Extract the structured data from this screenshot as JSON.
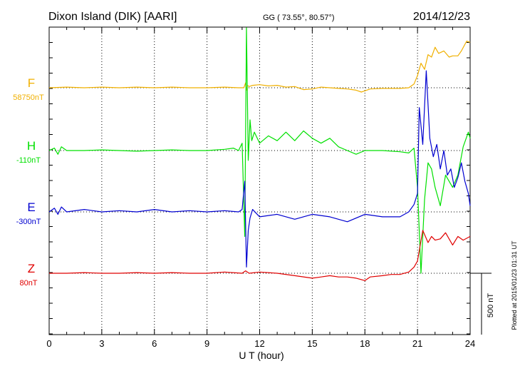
{
  "header": {
    "station": "Dixon Island (DIK)  [AARI]",
    "coords": "GG ( 73.55°,  80.57°)",
    "date": "2014/12/23"
  },
  "plotted_note": "Plotted at 2015/01/23 01:31  UT",
  "scale_bar_label": "500 nT",
  "colors": {
    "F": "#f0b000",
    "H": "#00e000",
    "E": "#0000d0",
    "Z": "#e00000",
    "axis": "#000000",
    "grid": "#000000"
  },
  "chart_data": {
    "type": "line",
    "xlabel": "U T (hour)",
    "xlim": [
      0,
      24
    ],
    "xticks": [
      0,
      3,
      6,
      9,
      12,
      15,
      18,
      21,
      24
    ],
    "xtick_labels": [
      "0",
      "3",
      "6",
      "9",
      "12",
      "15",
      "18",
      "21",
      "24"
    ],
    "grid": true,
    "y_unit": "nT",
    "y_range_per_panel_nT": 1000,
    "scale_bar_nT": 500,
    "series": [
      {
        "name": "F",
        "baseline_label": "58750nT",
        "color": "#f0b000",
        "x": [
          0,
          1,
          2,
          3,
          4,
          5,
          6,
          7,
          8,
          9,
          10,
          10.8,
          11.1,
          11.2,
          11.25,
          11.3,
          11.4,
          11.6,
          12,
          12.5,
          13,
          13.5,
          14,
          14.5,
          15,
          15.5,
          16,
          16.5,
          17,
          17.5,
          17.8,
          18,
          18.3,
          19,
          20,
          20.5,
          20.8,
          21,
          21.2,
          21.4,
          21.6,
          21.8,
          22,
          22.2,
          22.5,
          22.8,
          23,
          23.3,
          23.5,
          23.8,
          24
        ],
        "y": [
          0,
          5,
          0,
          5,
          0,
          5,
          0,
          5,
          0,
          0,
          5,
          0,
          0,
          40,
          -20,
          20,
          10,
          20,
          25,
          15,
          20,
          5,
          10,
          -15,
          -10,
          5,
          0,
          -5,
          -10,
          -20,
          -35,
          -25,
          -10,
          -5,
          -5,
          0,
          30,
          100,
          200,
          150,
          270,
          250,
          330,
          280,
          300,
          250,
          260,
          260,
          300,
          380,
          370
        ]
      },
      {
        "name": "H",
        "baseline_label": "-110nT",
        "color": "#00e000",
        "x": [
          0,
          0.3,
          0.5,
          0.7,
          1,
          2,
          3,
          4,
          5,
          6,
          7,
          8,
          9,
          10,
          10.5,
          10.8,
          11,
          11.15,
          11.25,
          11.35,
          11.45,
          11.55,
          11.7,
          12,
          12.5,
          13,
          13.5,
          14,
          14.5,
          15,
          15.5,
          16,
          16.5,
          17,
          17.5,
          18,
          19,
          20,
          20.5,
          20.8,
          21,
          21.2,
          21.4,
          21.6,
          21.8,
          22,
          22.3,
          22.6,
          23,
          23.3,
          23.6,
          23.9,
          24
        ],
        "y": [
          0,
          20,
          -30,
          30,
          0,
          0,
          5,
          0,
          -5,
          0,
          5,
          0,
          0,
          10,
          20,
          0,
          60,
          -700,
          1000,
          -80,
          250,
          80,
          150,
          60,
          120,
          80,
          150,
          80,
          160,
          100,
          60,
          100,
          30,
          0,
          -30,
          0,
          0,
          -10,
          -20,
          20,
          -300,
          -1000,
          -400,
          -100,
          -150,
          -300,
          -450,
          -200,
          -300,
          -200,
          30,
          150,
          100
        ]
      },
      {
        "name": "E",
        "baseline_label": "-300nT",
        "color": "#0000d0",
        "x": [
          0,
          0.3,
          0.5,
          0.7,
          1,
          2,
          3,
          4,
          5,
          6,
          7,
          8,
          9,
          10,
          10.8,
          11,
          11.15,
          11.25,
          11.35,
          11.45,
          11.6,
          12,
          13,
          14,
          15,
          16,
          17,
          18,
          19,
          20,
          20.5,
          20.8,
          21,
          21.1,
          21.3,
          21.5,
          21.7,
          21.9,
          22.1,
          22.3,
          22.5,
          22.7,
          22.9,
          23.1,
          23.3,
          23.5,
          23.7,
          23.9,
          24
        ],
        "y": [
          0,
          30,
          -20,
          40,
          0,
          20,
          0,
          10,
          0,
          20,
          0,
          10,
          0,
          10,
          0,
          20,
          250,
          -450,
          -150,
          -50,
          20,
          -40,
          -20,
          -60,
          -20,
          -40,
          -80,
          -20,
          -40,
          -40,
          0,
          60,
          150,
          850,
          550,
          1150,
          600,
          450,
          550,
          350,
          500,
          300,
          350,
          200,
          280,
          400,
          250,
          150,
          50
        ]
      },
      {
        "name": "Z",
        "baseline_label": "80nT",
        "color": "#e00000",
        "x": [
          0,
          1,
          2,
          3,
          4,
          5,
          6,
          7,
          8,
          9,
          10,
          11,
          11.2,
          11.4,
          12,
          13,
          14,
          15,
          15.5,
          16,
          16.5,
          17,
          17.5,
          18,
          18.3,
          19,
          19.5,
          20,
          20.5,
          20.8,
          21,
          21.3,
          21.6,
          21.8,
          22,
          22.3,
          22.6,
          23,
          23.3,
          23.6,
          24
        ],
        "y": [
          0,
          0,
          5,
          0,
          0,
          5,
          0,
          5,
          0,
          0,
          10,
          0,
          20,
          0,
          10,
          0,
          -20,
          -40,
          -30,
          -20,
          -30,
          -30,
          -40,
          -60,
          -30,
          -20,
          -10,
          -10,
          10,
          50,
          100,
          350,
          250,
          300,
          270,
          280,
          330,
          230,
          300,
          270,
          300
        ]
      }
    ]
  }
}
